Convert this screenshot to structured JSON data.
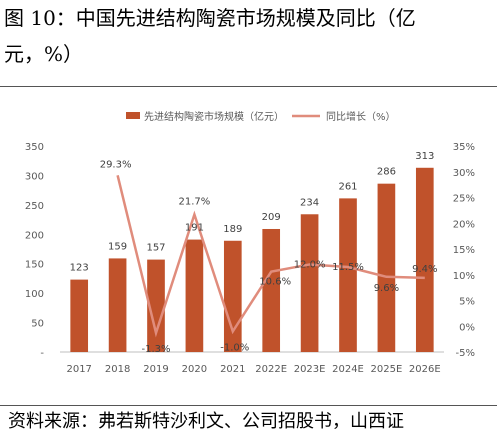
{
  "figure": {
    "title_line1": "图 10：中国先进结构陶瓷市场规模及同比（亿",
    "title_line2": "元，%）",
    "source": "资料来源：弗若斯特沙利文、公司招股书，山西证"
  },
  "colors": {
    "bar": "#C0522B",
    "line": "#E08C7C",
    "axis": "#bfbfbf"
  },
  "chart_data": {
    "type": "bar",
    "categories": [
      "2017",
      "2018",
      "2019",
      "2020",
      "2021",
      "2022E",
      "2023E",
      "2024E",
      "2025E",
      "2026E"
    ],
    "series": [
      {
        "name": "先进结构陶瓷市场规模（亿元）",
        "type": "bar",
        "axis": "left",
        "values": [
          123,
          159,
          157,
          191,
          189,
          209,
          234,
          261,
          286,
          313
        ],
        "labels": [
          "123",
          "159",
          "157",
          "191",
          "189",
          "209",
          "234",
          "261",
          "286",
          "313"
        ]
      },
      {
        "name": "同比增长（%）",
        "type": "line",
        "axis": "right",
        "values": [
          null,
          29.3,
          -1.3,
          21.7,
          -1.0,
          10.6,
          12.0,
          11.5,
          9.6,
          9.4
        ],
        "labels": [
          null,
          "29.3%",
          "-1.3%",
          "21.7%",
          "-1.0%",
          "10.6%",
          "12.0%",
          "11.5%",
          "9.6%",
          "9.4%"
        ]
      }
    ],
    "y_left": {
      "range": [
        0,
        350
      ],
      "ticks": [
        "-",
        "50",
        "100",
        "150",
        "200",
        "250",
        "300",
        "350"
      ],
      "tick_values": [
        0,
        50,
        100,
        150,
        200,
        250,
        300,
        350
      ]
    },
    "y_right": {
      "range": [
        -5,
        35
      ],
      "ticks": [
        "-5%",
        "0%",
        "5%",
        "10%",
        "15%",
        "20%",
        "25%",
        "30%",
        "35%"
      ],
      "tick_values": [
        -5,
        0,
        5,
        10,
        15,
        20,
        25,
        30,
        35
      ]
    },
    "legend_position": "top-center",
    "grid": false
  }
}
